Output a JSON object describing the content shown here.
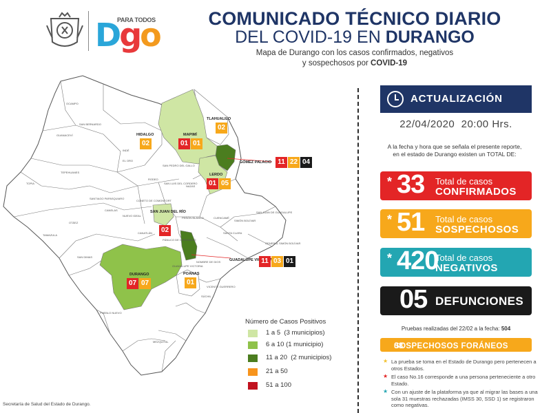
{
  "header": {
    "logo_tagline": "PARA TODOS",
    "logo_letters": [
      "D",
      "g",
      "o"
    ],
    "title_line1": "COMUNICADO TÉCNICO DIARIO",
    "title_line2_a": "DEL COVID-19 EN ",
    "title_line2_b": "DURANGO",
    "subtitle_line1": "Mapa de Durango con los casos confirmados, negativos",
    "subtitle_line2_a": "y sospechosos por ",
    "subtitle_line2_b": "COVID-19"
  },
  "update": {
    "label": "ACTUALIZACIÓN",
    "date": "22/04/2020",
    "time": "20:00 Hrs.",
    "intro": "A la fecha y hora que se señala el presente reporte, en el estado de Durango existen un TOTAL DE:"
  },
  "stats": [
    {
      "star": "*",
      "value": "33",
      "line1": "Total de casos",
      "line2": "CONFIRMADOS",
      "color": "#e32526"
    },
    {
      "star": "*",
      "value": "51",
      "line1": "Total de casos",
      "line2": "SOSPECHOSOS",
      "color": "#f7a81b"
    },
    {
      "star": "*",
      "value": "420",
      "line1": "Total de casos",
      "line2": "NEGATIVOS",
      "color": "#23a6b2"
    },
    {
      "star": "",
      "value": "05",
      "line1": "",
      "line2": "DEFUNCIONES",
      "color": "#1a1a1a"
    }
  ],
  "tests": {
    "text": "Pruebas realizadas del 22/02 a la fecha: ",
    "value": "504"
  },
  "foreign": {
    "value": "08",
    "label": "SOSPECHOSOS FORÁNEOS"
  },
  "notes": [
    {
      "star": "★",
      "color": "#f2c12e",
      "text": "La prueba se toma en el Estado de Durango pero pertenecen a otros Estados."
    },
    {
      "star": "★",
      "color": "#e32526",
      "text": "El caso No.16 corresponde a una persona perteneciente a otro Estado."
    },
    {
      "star": "★",
      "color": "#23a6b2",
      "text": "Con un ajuste de la plataforma ya que al migrar las bases a una sola 31 muestras rechazadas (IMSS 30, SSD 1) se registraron como negativas."
    }
  ],
  "map": {
    "municipios": [
      {
        "name": "OCAMPO"
      },
      {
        "name": "SAN BERNARDO"
      },
      {
        "name": "GUANACEVÍ"
      },
      {
        "name": "INDÉ"
      },
      {
        "name": "EL ORO"
      },
      {
        "name": "SAN PEDRO DEL GALLO"
      },
      {
        "name": "TEPEHUANES"
      },
      {
        "name": "SAN LUIS DEL CORDERO"
      },
      {
        "name": "RODEO"
      },
      {
        "name": "NAZAS"
      },
      {
        "name": "TOPIA"
      },
      {
        "name": "SANTIAGO PAPASQUIARO"
      },
      {
        "name": "CONETO DE COMONFORT"
      },
      {
        "name": "CANELAS"
      },
      {
        "name": "OTÁEZ"
      },
      {
        "name": "NUEVO IDEAL"
      },
      {
        "name": "CANATLÁN"
      },
      {
        "name": "PEÑÓN BLANCO"
      },
      {
        "name": "CUENCAMÉ"
      },
      {
        "name": "SANTA CLARA"
      },
      {
        "name": "SIMÓN BOLÍVAR"
      },
      {
        "name": "SAN JUAN DE GUADALUPE"
      },
      {
        "name": "GENERAL SIMÓN BOLÍVAR"
      },
      {
        "name": "TAMAZULA"
      },
      {
        "name": "SAN DIMAS"
      },
      {
        "name": "NOMBRE DE DIOS"
      },
      {
        "name": "VICENTE GUERRERO"
      },
      {
        "name": "SÚCHIL"
      },
      {
        "name": "PUEBLO NUEVO"
      },
      {
        "name": "MEZQUITAL"
      },
      {
        "name": "GUADALUPE VICTORIA"
      },
      {
        "name": "PÁNUCO DE CORONADO"
      }
    ],
    "highlighted": [
      {
        "name": "TLAHUALILO",
        "badges": [
          {
            "value": "02",
            "color": "#f7a81b"
          }
        ]
      },
      {
        "name": "MAPIMÍ",
        "badges": [
          {
            "value": "01",
            "color": "#e32526"
          },
          {
            "value": "01",
            "color": "#f7a81b"
          }
        ]
      },
      {
        "name": "HIDALGO",
        "badges": [
          {
            "value": "02",
            "color": "#f7a81b"
          }
        ]
      },
      {
        "name": "GÓMEZ PALACIO",
        "badges": [
          {
            "value": "11",
            "color": "#e32526"
          },
          {
            "value": "22",
            "color": "#f7a81b"
          },
          {
            "value": "04",
            "color": "#1a1a1a"
          }
        ]
      },
      {
        "name": "LERDO",
        "badges": [
          {
            "value": "01",
            "color": "#e32526"
          },
          {
            "value": "05",
            "color": "#f7a81b"
          }
        ]
      },
      {
        "name": "SAN JUAN DEL RÍO",
        "badges": [
          {
            "value": "02",
            "color": "#e32526"
          }
        ]
      },
      {
        "name": "GUADALUPE VICTORIA",
        "badges": [
          {
            "value": "11",
            "color": "#e32526"
          },
          {
            "value": "03",
            "color": "#f7a81b"
          },
          {
            "value": "01",
            "color": "#1a1a1a"
          }
        ]
      },
      {
        "name": "DURANGO",
        "badges": [
          {
            "value": "07",
            "color": "#e32526"
          },
          {
            "value": "07",
            "color": "#f7a81b"
          }
        ]
      },
      {
        "name": "POANAS",
        "badges": [
          {
            "value": "01",
            "color": "#f7a81b"
          }
        ]
      }
    ]
  },
  "legend": {
    "title": "Número de Casos Positivos",
    "items": [
      {
        "label": "1 a 5",
        "extra": "(3 municipios)",
        "color": "#cfe6a4"
      },
      {
        "label": "6 a 10",
        "extra": "(1 municipio)",
        "color": "#8fc24a"
      },
      {
        "label": "11 a 20",
        "extra": "(2 municipios)",
        "color": "#4b7d1f"
      },
      {
        "label": "21 a 50",
        "extra": "",
        "color": "#f7941d"
      },
      {
        "label": "51 a 100",
        "extra": "",
        "color": "#c1121f"
      }
    ]
  },
  "footer": "Secretaría de Salud del Estado de Durango."
}
